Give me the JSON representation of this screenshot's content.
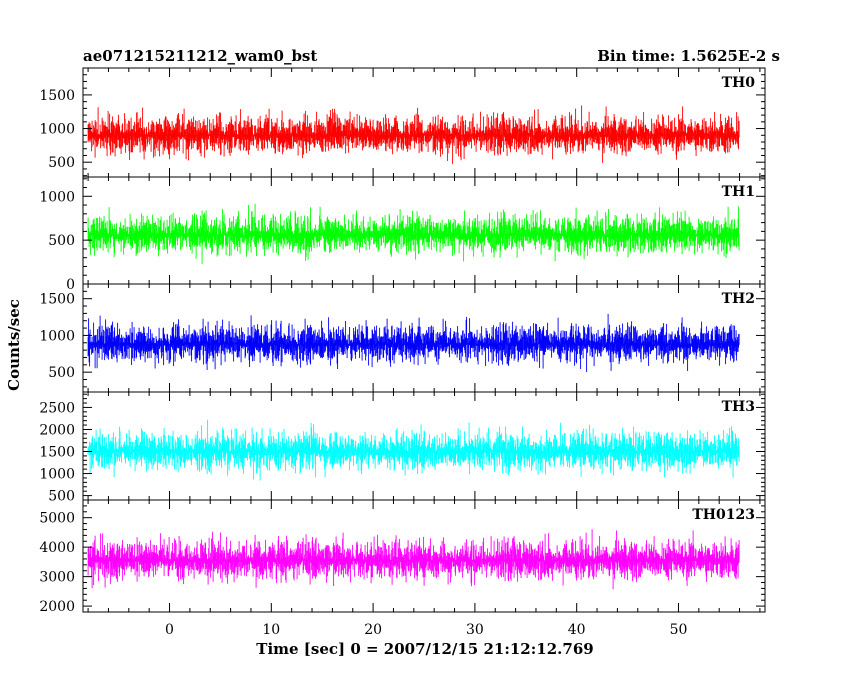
{
  "header": {
    "title": "ae071215211212_wam0_bst",
    "bin_time": "Bin time: 1.5625E-2 s"
  },
  "chart_data": {
    "type": "line",
    "xlabel": "Time [sec] 0 = 2007/12/15 21:12:12.769",
    "ylabel": "Counts/sec",
    "xlim": [
      -8.5,
      58.5
    ],
    "x_ticks": [
      0,
      10,
      20,
      30,
      40,
      50
    ],
    "data_x_range": [
      -8,
      56
    ],
    "panels": [
      {
        "name": "TH0",
        "color": "#ff0000",
        "ylim": [
          280,
          1900
        ],
        "y_ticks": [
          500,
          1000,
          1500
        ],
        "mean": 900,
        "range": [
          320,
          1880
        ]
      },
      {
        "name": "TH1",
        "color": "#00ff00",
        "ylim": [
          0,
          1220
        ],
        "y_ticks": [
          0,
          500,
          1000
        ],
        "mean": 560,
        "range": [
          40,
          1220
        ]
      },
      {
        "name": "TH2",
        "color": "#0000ff",
        "ylim": [
          230,
          1700
        ],
        "y_ticks": [
          500,
          1000,
          1500
        ],
        "mean": 880,
        "range": [
          260,
          1700
        ]
      },
      {
        "name": "TH3",
        "color": "#00ffff",
        "ylim": [
          400,
          2850
        ],
        "y_ticks": [
          500,
          1000,
          1500,
          2000,
          2500
        ],
        "mean": 1500,
        "range": [
          480,
          2850
        ]
      },
      {
        "name": "TH0123",
        "color": "#ff00ff",
        "ylim": [
          1800,
          5600
        ],
        "y_ticks": [
          2000,
          3000,
          4000,
          5000
        ],
        "mean": 3550,
        "range": [
          1900,
          5600
        ]
      }
    ]
  }
}
